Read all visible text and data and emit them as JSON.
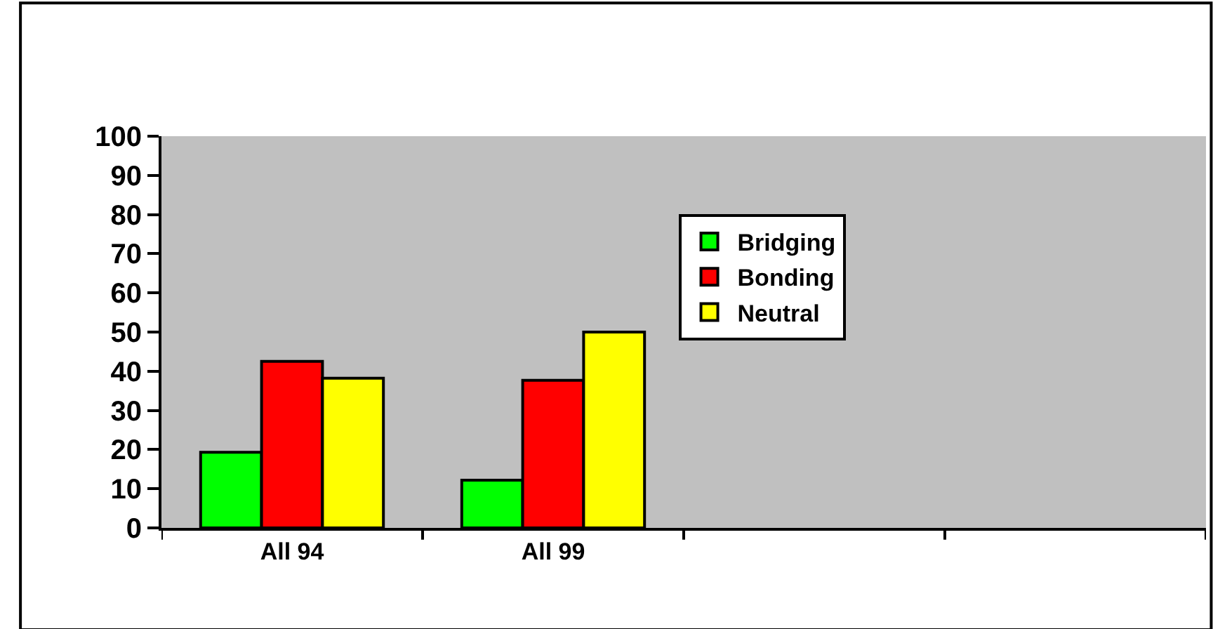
{
  "chart_data": {
    "type": "bar",
    "categories": [
      "All 94",
      "All 99",
      null,
      null
    ],
    "series": [
      {
        "name": "Bridging",
        "color": "#00ff00",
        "values": [
          19.3,
          12.2,
          null,
          null
        ]
      },
      {
        "name": "Bonding",
        "color": "#ff0000",
        "values": [
          42.5,
          37.7,
          null,
          null
        ]
      },
      {
        "name": "Neutral",
        "color": "#ffff00",
        "values": [
          38.2,
          50,
          null,
          null
        ]
      }
    ],
    "ylim": [
      0,
      100
    ],
    "yticks": [
      0,
      10,
      20,
      30,
      40,
      50,
      60,
      70,
      80,
      90,
      100
    ],
    "grid": false,
    "legend": "center"
  }
}
